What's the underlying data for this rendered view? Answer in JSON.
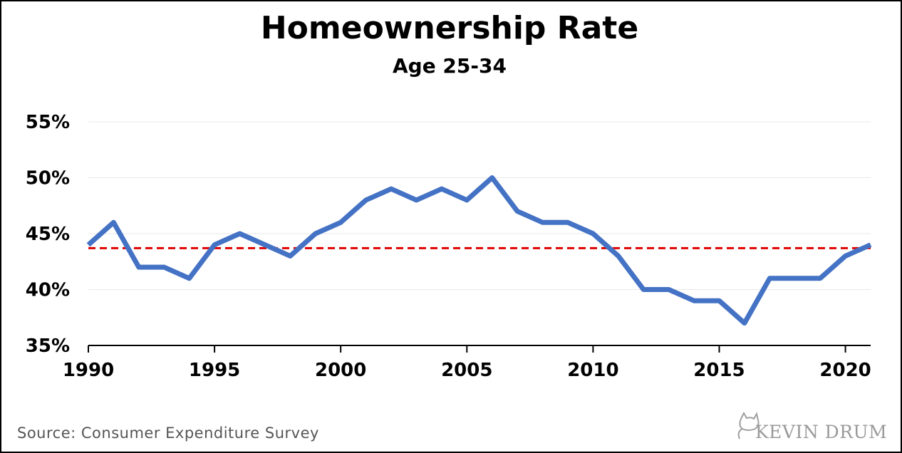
{
  "title": "Homeownership Rate",
  "subtitle": "Age 25-34",
  "source": "Source: Consumer Expenditure Survey",
  "logo_text": "KEVIN DRUM",
  "colors": {
    "line": "#4472c4",
    "reference_line": "#e00000",
    "gridline": "#e8e8e8",
    "axis": "#000000"
  },
  "chart_data": {
    "type": "line",
    "title": "Homeownership Rate",
    "subtitle": "Age 25-34",
    "xlabel": "",
    "ylabel": "",
    "xlim": [
      1990,
      2021
    ],
    "ylim": [
      35,
      55
    ],
    "x_ticks": [
      1990,
      1995,
      2000,
      2005,
      2010,
      2015,
      2020
    ],
    "x_tick_labels": [
      "1990",
      "1995",
      "2000",
      "2005",
      "2010",
      "2015",
      "2020"
    ],
    "y_ticks": [
      35,
      40,
      45,
      50,
      55
    ],
    "y_tick_labels": [
      "35%",
      "40%",
      "45%",
      "50%",
      "55%"
    ],
    "grid": "horizontal",
    "legend": "none",
    "x": [
      1990,
      1991,
      1992,
      1993,
      1994,
      1995,
      1996,
      1997,
      1998,
      1999,
      2000,
      2001,
      2002,
      2003,
      2004,
      2005,
      2006,
      2007,
      2008,
      2009,
      2010,
      2011,
      2012,
      2013,
      2014,
      2015,
      2016,
      2017,
      2018,
      2019,
      2020,
      2021
    ],
    "series": [
      {
        "values": [
          44,
          46,
          42,
          42,
          41,
          44,
          45,
          44,
          43,
          45,
          46,
          48,
          49,
          48,
          49,
          48,
          50,
          47,
          46,
          46,
          45,
          43,
          40,
          40,
          39,
          39,
          37,
          41,
          41,
          41,
          43,
          44
        ]
      }
    ],
    "reference_line": {
      "y": 43.7,
      "style": "dashed"
    }
  }
}
